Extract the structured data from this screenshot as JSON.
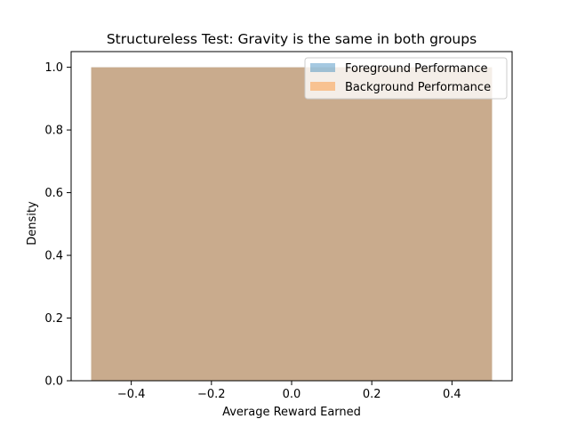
{
  "chart_data": {
    "type": "histogram",
    "title": "Structureless Test: Gravity is the same in both groups",
    "xlabel": "Average Reward Earned",
    "ylabel": "Density",
    "xlim": [
      -0.55,
      0.55
    ],
    "ylim": [
      0,
      1.05
    ],
    "xticks": [
      -0.4,
      -0.2,
      0.0,
      0.2,
      0.4
    ],
    "xtick_labels": [
      "−0.4",
      "−0.2",
      "0.0",
      "0.2",
      "0.4"
    ],
    "yticks": [
      0.0,
      0.2,
      0.4,
      0.6,
      0.8,
      1.0
    ],
    "ytick_labels": [
      "0.0",
      "0.2",
      "0.4",
      "0.6",
      "0.8",
      "1.0"
    ],
    "legend_position": "top-right",
    "series": [
      {
        "name": "Foreground Performance",
        "color": "#1f77b4",
        "opacity": 0.4,
        "bins": [
          {
            "x0": -0.5,
            "x1": 0.5,
            "density": 1.0
          }
        ]
      },
      {
        "name": "Background Performance",
        "color": "#ff7f0e",
        "opacity": 0.4,
        "bins": [
          {
            "x0": -0.5,
            "x1": 0.5,
            "density": 1.0
          }
        ]
      }
    ]
  }
}
